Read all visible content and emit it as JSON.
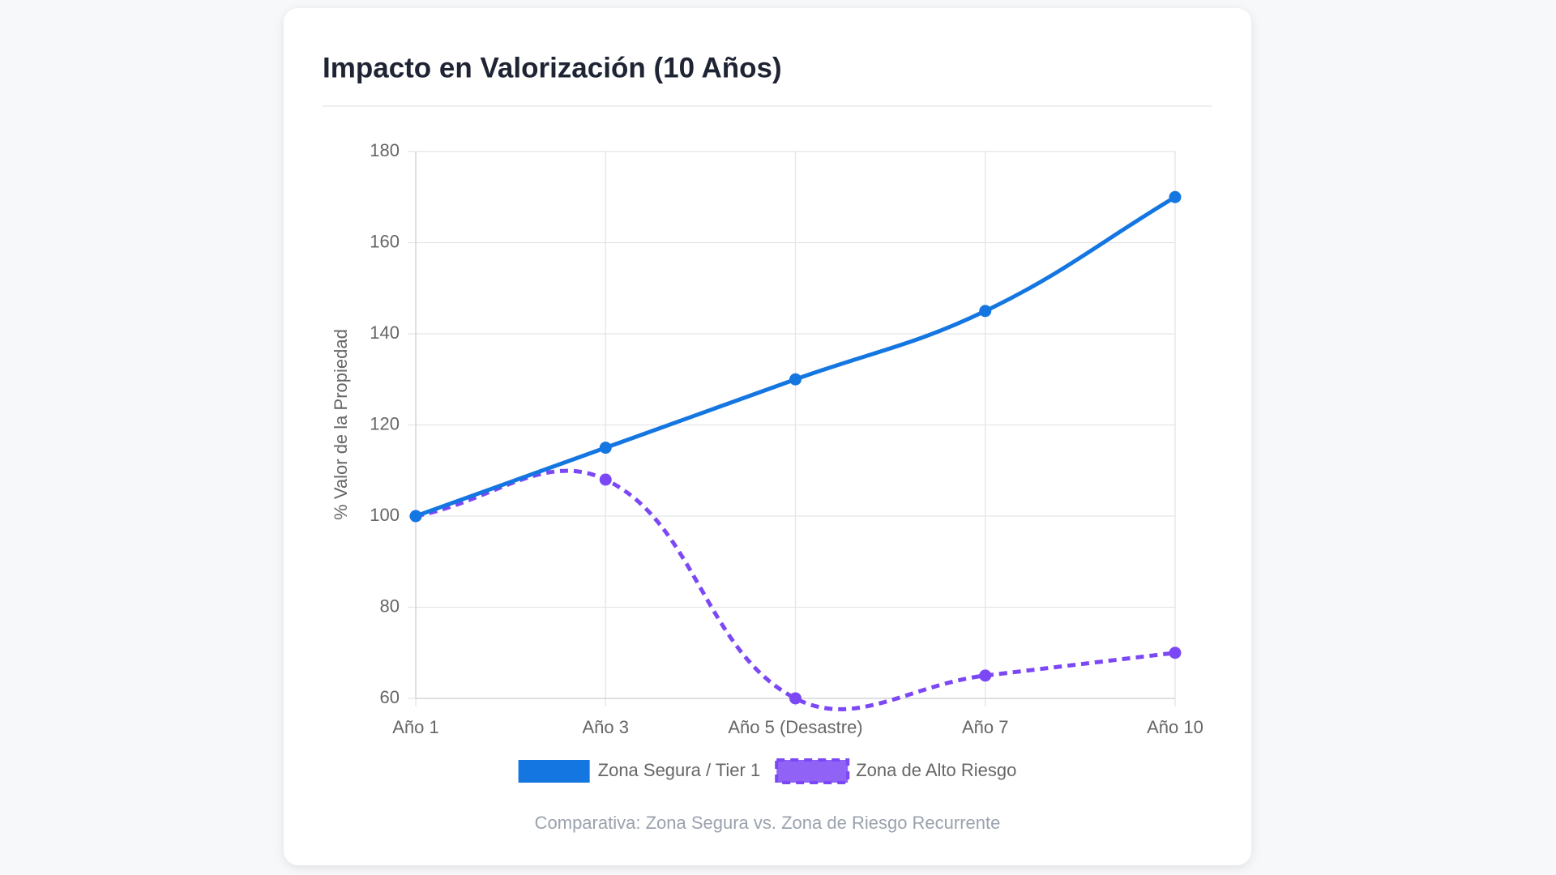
{
  "chart_data": {
    "type": "line",
    "title": "Impacto en Valorización (10 Años)",
    "y_label": "% Valor de la Propiedad",
    "footnote": "Comparativa: Zona Segura vs. Zona de Riesgo Recurrente",
    "categories": [
      "Año 1",
      "Año 3",
      "Año 5 (Desastre)",
      "Año 7",
      "Año 10"
    ],
    "series": [
      {
        "name": "Zona Segura / Tier 1",
        "color": "#1476e0",
        "dashed": false,
        "values": [
          100,
          115,
          130,
          145,
          170
        ]
      },
      {
        "name": "Zona de Alto Riesgo",
        "color": "#7c48f5",
        "dashed": true,
        "values": [
          100,
          108,
          60,
          65,
          70
        ]
      }
    ],
    "ylim": [
      60,
      180
    ],
    "yticks": [
      60,
      80,
      100,
      120,
      140,
      160,
      180
    ],
    "grid": true,
    "legend": "bottom"
  }
}
